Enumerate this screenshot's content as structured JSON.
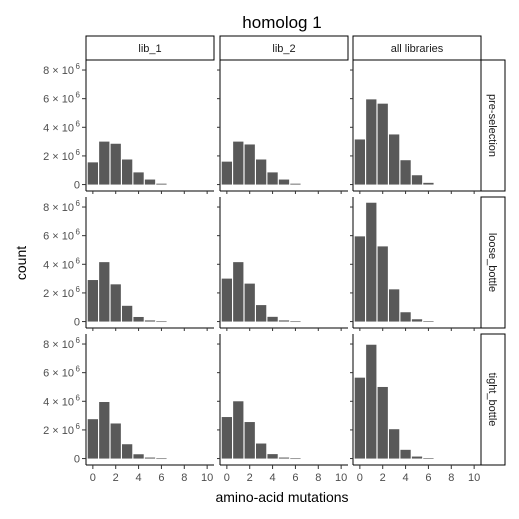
{
  "chart_data": {
    "type": "bar",
    "title": "homolog 1",
    "xlabel": "amino-acid mutations",
    "ylabel": "count",
    "x_ticks": [
      0,
      2,
      4,
      6,
      8,
      10
    ],
    "y_ticks": [
      {
        "value": 0,
        "label": "0",
        "exp": ""
      },
      {
        "value": 2000000,
        "label": "2 × 10",
        "exp": "6"
      },
      {
        "value": 4000000,
        "label": "4 × 10",
        "exp": "6"
      },
      {
        "value": 6000000,
        "label": "6 × 10",
        "exp": "6"
      },
      {
        "value": 8000000,
        "label": "8 × 10",
        "exp": "6"
      }
    ],
    "xlim": [
      -0.6,
      10.6
    ],
    "ylim": [
      -450000,
      8700000
    ],
    "bar_color": "#595959",
    "grid": false,
    "col_facets": [
      "lib_1",
      "lib_2",
      "all libraries"
    ],
    "row_facets": [
      "pre-selection",
      "loose_bottle",
      "tight_bottle"
    ],
    "x": [
      0,
      1,
      2,
      3,
      4,
      5,
      6
    ],
    "panels": [
      {
        "row": "pre-selection",
        "col": "lib_1",
        "values": [
          1550000,
          3000000,
          2850000,
          1750000,
          850000,
          350000,
          60000
        ]
      },
      {
        "row": "pre-selection",
        "col": "lib_2",
        "values": [
          1600000,
          3000000,
          2800000,
          1750000,
          850000,
          350000,
          60000
        ]
      },
      {
        "row": "pre-selection",
        "col": "all libraries",
        "values": [
          3150000,
          5950000,
          5650000,
          3500000,
          1700000,
          650000,
          120000
        ]
      },
      {
        "row": "loose_bottle",
        "col": "lib_1",
        "values": [
          2900000,
          4150000,
          2600000,
          1100000,
          320000,
          80000,
          10000
        ]
      },
      {
        "row": "loose_bottle",
        "col": "lib_2",
        "values": [
          3000000,
          4150000,
          2650000,
          1150000,
          330000,
          80000,
          10000
        ]
      },
      {
        "row": "loose_bottle",
        "col": "all libraries",
        "values": [
          5950000,
          8300000,
          5250000,
          2250000,
          650000,
          160000,
          20000
        ]
      },
      {
        "row": "tight_bottle",
        "col": "lib_1",
        "values": [
          2750000,
          3950000,
          2450000,
          1000000,
          300000,
          70000,
          10000
        ]
      },
      {
        "row": "tight_bottle",
        "col": "lib_2",
        "values": [
          2900000,
          4000000,
          2550000,
          1050000,
          310000,
          70000,
          10000
        ]
      },
      {
        "row": "tight_bottle",
        "col": "all libraries",
        "values": [
          5650000,
          7950000,
          5000000,
          2050000,
          610000,
          140000,
          20000
        ]
      }
    ]
  }
}
